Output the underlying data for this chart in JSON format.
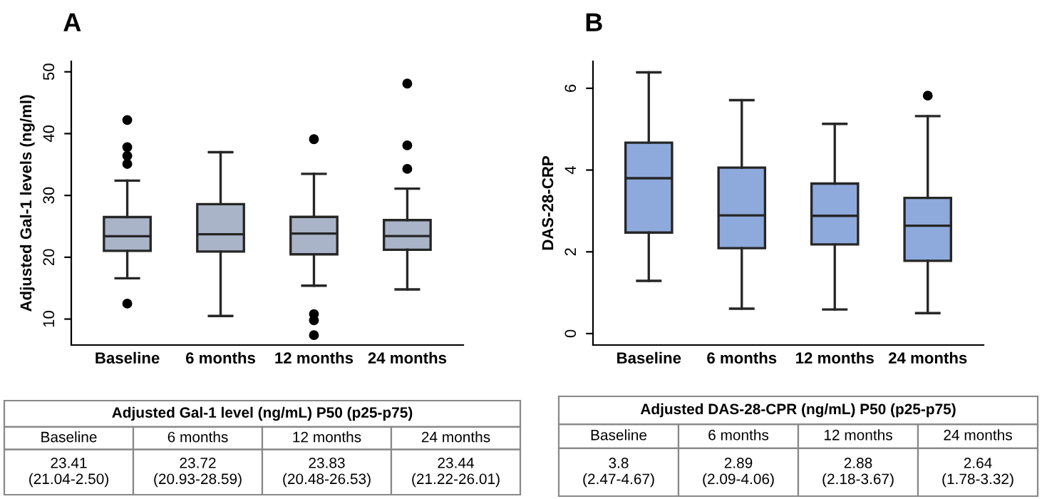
{
  "chart_data": [
    {
      "type": "box",
      "title": "A",
      "ylabel": "Adjusted Gal-1 levels (ng/ml)",
      "categories": [
        "Baseline",
        "6 months",
        "12 months",
        "24 months"
      ],
      "color": "#aab4c8",
      "ylim": [
        5.8,
        51.7
      ],
      "yticks": [
        10,
        20,
        30,
        40,
        50
      ],
      "grid": false,
      "boxes": [
        {
          "low": 16.6,
          "q1": 21.04,
          "median": 23.41,
          "q3": 26.5,
          "high": 32.4,
          "outliers": [
            42.2,
            37.8,
            36.4,
            35.1,
            12.5
          ]
        },
        {
          "low": 10.5,
          "q1": 20.93,
          "median": 23.72,
          "q3": 28.59,
          "high": 37.0
        },
        {
          "low": 15.4,
          "q1": 20.48,
          "median": 23.83,
          "q3": 26.53,
          "high": 33.5,
          "outliers": [
            39.1,
            10.8,
            9.8,
            7.4
          ]
        },
        {
          "low": 14.8,
          "q1": 21.22,
          "median": 23.44,
          "q3": 26.01,
          "high": 31.1,
          "outliers": [
            48.1,
            38.1,
            34.3
          ]
        }
      ],
      "annotations": [
        "Adjusted Gal-1 level (ng/mL) P50 (p25-p75)",
        "23.41\n(21.04-2.50)",
        "23.72\n(20.93-28.59)",
        "23.83\n(20.48-26.53)",
        "23.44\n(21.22-26.01)"
      ]
    },
    {
      "type": "box",
      "title": "B",
      "ylabel": "DAS-28-CRP",
      "categories": [
        "Baseline",
        "6 months",
        "12 months",
        "24 months"
      ],
      "color": "#8eaadc",
      "ylim": [
        -0.28,
        6.66
      ],
      "yticks": [
        0,
        2,
        4,
        6
      ],
      "grid": false,
      "boxes": [
        {
          "low": 1.29,
          "q1": 2.47,
          "median": 3.8,
          "q3": 4.67,
          "high": 6.39
        },
        {
          "low": 0.61,
          "q1": 2.09,
          "median": 2.89,
          "q3": 4.06,
          "high": 5.71
        },
        {
          "low": 0.59,
          "q1": 2.18,
          "median": 2.88,
          "q3": 3.67,
          "high": 5.13
        },
        {
          "low": 0.5,
          "q1": 1.78,
          "median": 2.64,
          "q3": 3.32,
          "high": 5.32,
          "outliers": [
            5.82
          ]
        }
      ],
      "annotations": [
        "Adjusted DAS-28-CPR (ng/mL) P50 (p25-p75)",
        "3.8\n(2.47-4.67)",
        "2.89\n(2.09-4.06)",
        "2.88\n(2.18-3.67)",
        "2.64\n(1.78-3.32)"
      ]
    }
  ]
}
